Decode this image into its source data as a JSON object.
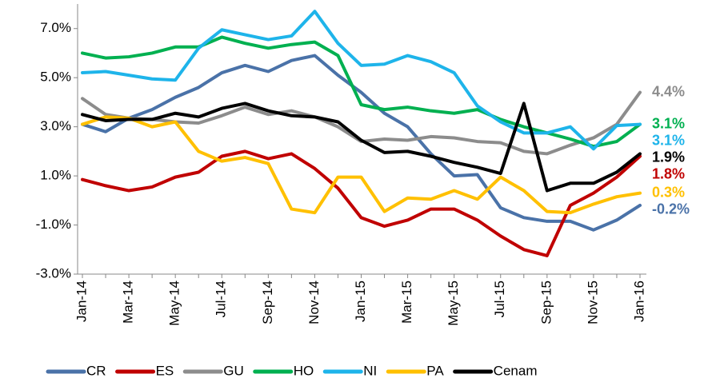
{
  "chart_data": {
    "type": "line",
    "categories": [
      "Jan-14",
      null,
      "Mar-14",
      null,
      "May-14",
      null,
      "Jul-14",
      null,
      "Sep-14",
      null,
      "Nov-14",
      null,
      "Jan-15",
      null,
      "Mar-15",
      null,
      "May-15",
      null,
      "Jul-15",
      null,
      "Sep-15",
      null,
      "Nov-15",
      null,
      "Jan-16"
    ],
    "ylim": [
      -3,
      8
    ],
    "yticks": [
      {
        "value": -3,
        "label": "-3.0%"
      },
      {
        "value": -1,
        "label": "-1.0%"
      },
      {
        "value": 1,
        "label": "1.0%"
      },
      {
        "value": 3,
        "label": "3.0%"
      },
      {
        "value": 5,
        "label": "5.0%"
      },
      {
        "value": 7,
        "label": "7.0%"
      }
    ],
    "grid": false,
    "legend": "bottom",
    "series": [
      {
        "name": "CR",
        "color": "#4a72a8",
        "values": [
          3.1,
          2.8,
          3.35,
          3.7,
          4.2,
          4.6,
          5.2,
          5.5,
          5.25,
          5.7,
          5.9,
          5.1,
          4.4,
          3.55,
          3.0,
          1.9,
          1.0,
          1.05,
          -0.3,
          -0.7,
          -0.85,
          -0.85,
          -1.2,
          -0.8,
          -0.2
        ],
        "value_labels": [
          null,
          null,
          null,
          null,
          null,
          null,
          null,
          null,
          null,
          null,
          null,
          null,
          null,
          null,
          null,
          null,
          null,
          null,
          null,
          null,
          null,
          null,
          null,
          null,
          "-0.2%"
        ]
      },
      {
        "name": "ES",
        "color": "#c00000",
        "values": [
          0.85,
          0.6,
          0.4,
          0.55,
          0.95,
          1.15,
          1.8,
          2.0,
          1.7,
          1.9,
          1.3,
          0.5,
          -0.7,
          -1.05,
          -0.8,
          -0.35,
          -0.35,
          -0.8,
          -1.45,
          -2.0,
          -2.25,
          -0.2,
          0.3,
          0.95,
          1.8
        ],
        "value_labels": [
          null,
          null,
          null,
          null,
          null,
          null,
          null,
          null,
          null,
          null,
          null,
          null,
          null,
          null,
          null,
          null,
          null,
          null,
          null,
          null,
          null,
          null,
          null,
          null,
          "1.8%"
        ]
      },
      {
        "name": "GU",
        "color": "#8c8c8c",
        "values": [
          4.15,
          3.5,
          3.35,
          3.3,
          3.2,
          3.15,
          3.45,
          3.8,
          3.5,
          3.65,
          3.4,
          3.0,
          2.4,
          2.5,
          2.45,
          2.6,
          2.55,
          2.4,
          2.35,
          2.0,
          1.9,
          2.25,
          2.55,
          3.1,
          4.4
        ],
        "value_labels": [
          null,
          null,
          null,
          null,
          null,
          null,
          null,
          null,
          null,
          null,
          null,
          null,
          null,
          null,
          null,
          null,
          null,
          null,
          null,
          null,
          null,
          null,
          null,
          null,
          "4.4%"
        ]
      },
      {
        "name": "HO",
        "color": "#00b050",
        "values": [
          6.0,
          5.8,
          5.85,
          6.0,
          6.25,
          6.25,
          6.65,
          6.4,
          6.2,
          6.35,
          6.45,
          5.9,
          3.9,
          3.7,
          3.8,
          3.65,
          3.55,
          3.7,
          3.3,
          3.0,
          2.75,
          2.5,
          2.2,
          2.4,
          3.1
        ],
        "value_labels": [
          null,
          null,
          null,
          null,
          null,
          null,
          null,
          null,
          null,
          null,
          null,
          null,
          null,
          null,
          null,
          null,
          null,
          null,
          null,
          null,
          null,
          null,
          null,
          null,
          "3.1%"
        ]
      },
      {
        "name": "NI",
        "color": "#1eb4ea",
        "values": [
          5.2,
          5.25,
          5.1,
          4.95,
          4.9,
          6.2,
          6.95,
          6.75,
          6.55,
          6.7,
          7.7,
          6.4,
          5.5,
          5.55,
          5.9,
          5.65,
          5.2,
          3.85,
          3.2,
          2.75,
          2.75,
          3.0,
          2.1,
          3.05,
          3.1
        ],
        "value_labels": [
          null,
          null,
          null,
          null,
          null,
          null,
          null,
          null,
          null,
          null,
          null,
          null,
          null,
          null,
          null,
          null,
          null,
          null,
          null,
          null,
          null,
          null,
          null,
          null,
          "3.1%"
        ]
      },
      {
        "name": "PA",
        "color": "#ffc000",
        "values": [
          3.1,
          3.4,
          3.35,
          3.0,
          3.2,
          2.0,
          1.6,
          1.75,
          1.5,
          -0.35,
          -0.5,
          0.95,
          0.95,
          -0.45,
          0.1,
          0.05,
          0.4,
          0.05,
          0.95,
          0.4,
          -0.45,
          -0.5,
          -0.15,
          0.15,
          0.3
        ],
        "value_labels": [
          null,
          null,
          null,
          null,
          null,
          null,
          null,
          null,
          null,
          null,
          null,
          null,
          null,
          null,
          null,
          null,
          null,
          null,
          null,
          null,
          null,
          null,
          null,
          null,
          "0.3%"
        ]
      },
      {
        "name": "Cenam",
        "color": "#000000",
        "values": [
          3.5,
          3.25,
          3.3,
          3.3,
          3.55,
          3.4,
          3.75,
          3.95,
          3.65,
          3.45,
          3.4,
          3.2,
          2.45,
          1.95,
          2.0,
          1.8,
          1.55,
          1.35,
          1.1,
          3.95,
          0.4,
          0.7,
          0.7,
          1.15,
          1.9
        ],
        "value_labels": [
          null,
          null,
          null,
          null,
          null,
          null,
          null,
          null,
          null,
          null,
          null,
          null,
          null,
          null,
          null,
          null,
          null,
          null,
          null,
          null,
          null,
          null,
          null,
          null,
          "1.9%"
        ]
      }
    ]
  }
}
